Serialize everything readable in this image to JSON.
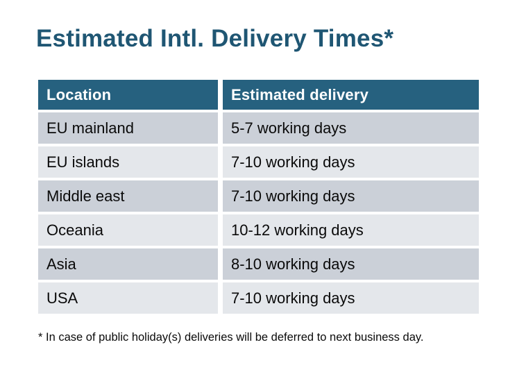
{
  "title": {
    "text": "Estimated Intl. Delivery Times*",
    "color": "#1F5673"
  },
  "table": {
    "headers": [
      {
        "label": "Location"
      },
      {
        "label": "Estimated delivery"
      }
    ],
    "rows": [
      {
        "location": "EU mainland",
        "delivery": "5-7 working days"
      },
      {
        "location": "EU islands",
        "delivery": "7-10 working days"
      },
      {
        "location": "Middle east",
        "delivery": "7-10 working days"
      },
      {
        "location": "Oceania",
        "delivery": "10-12 working days"
      },
      {
        "location": "Asia",
        "delivery": "8-10 working days"
      },
      {
        "location": "USA",
        "delivery": "7-10 working days"
      }
    ],
    "colors": {
      "header_bg": "#26617F",
      "header_text": "#FFFFFF",
      "row_dark": "#CBD0D8",
      "row_light": "#E4E7EB",
      "cell_text": "#0A0A0A"
    }
  },
  "footnote": {
    "text": "* In case of public holiday(s) deliveries will be deferred to next business day."
  }
}
